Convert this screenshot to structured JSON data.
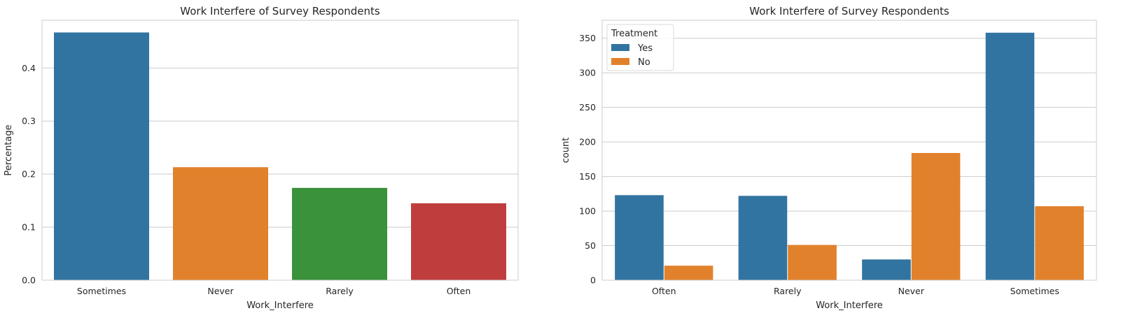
{
  "chart_data": [
    {
      "type": "bar",
      "title": "Work Interfere of Survey Respondents",
      "xlabel": "Work_Interfere",
      "ylabel": "Percentage",
      "categories": [
        "Sometimes",
        "Never",
        "Rarely",
        "Often"
      ],
      "values": [
        0.467,
        0.213,
        0.174,
        0.145
      ],
      "colors": [
        "#3274a1",
        "#e1812c",
        "#3a923a",
        "#c03d3e"
      ],
      "ylim": [
        0,
        0.49
      ],
      "yticks": [
        0.0,
        0.1,
        0.2,
        0.3,
        0.4
      ],
      "ytick_labels": [
        "0.0",
        "0.1",
        "0.2",
        "0.3",
        "0.4"
      ],
      "grid": true
    },
    {
      "type": "bar",
      "title": "Work Interfere of Survey Respondents",
      "xlabel": "Work_Interfere",
      "ylabel": "count",
      "categories": [
        "Often",
        "Rarely",
        "Never",
        "Sometimes"
      ],
      "series": [
        {
          "name": "Yes",
          "color": "#3274a1",
          "values": [
            123,
            122,
            30,
            358
          ]
        },
        {
          "name": "No",
          "color": "#e1812c",
          "values": [
            21,
            51,
            184,
            107
          ]
        }
      ],
      "ylim": [
        0,
        376
      ],
      "yticks": [
        0,
        50,
        100,
        150,
        200,
        250,
        300,
        350
      ],
      "ytick_labels": [
        "0",
        "50",
        "100",
        "150",
        "200",
        "250",
        "300",
        "350"
      ],
      "legend": {
        "title": "Treatment",
        "placement": "top-left"
      },
      "grid": true
    }
  ]
}
